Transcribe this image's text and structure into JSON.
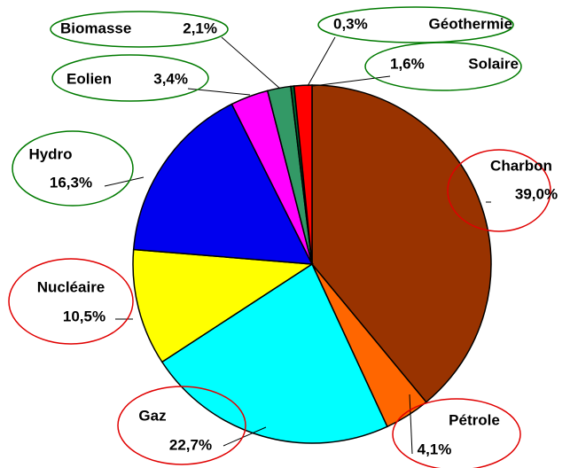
{
  "chart_data": {
    "type": "pie",
    "categories": [
      "Charbon",
      "Pétrole",
      "Gaz",
      "Nucléaire",
      "Hydro",
      "Eolien",
      "Biomasse",
      "Géothermie",
      "Solaire"
    ],
    "values": [
      39.0,
      4.1,
      22.7,
      10.5,
      16.3,
      3.4,
      2.1,
      0.3,
      1.6
    ],
    "value_labels": [
      "39,0%",
      "4,1%",
      "22,7%",
      "10,5%",
      "16,3%",
      "3,4%",
      "2,1%",
      "0,3%",
      "1,6%"
    ],
    "colors": [
      "#993300",
      "#ff6600",
      "#00ffff",
      "#ffff00",
      "#0000ee",
      "#ff00ff",
      "#339966",
      "#006633",
      "#ff0000"
    ]
  }
}
